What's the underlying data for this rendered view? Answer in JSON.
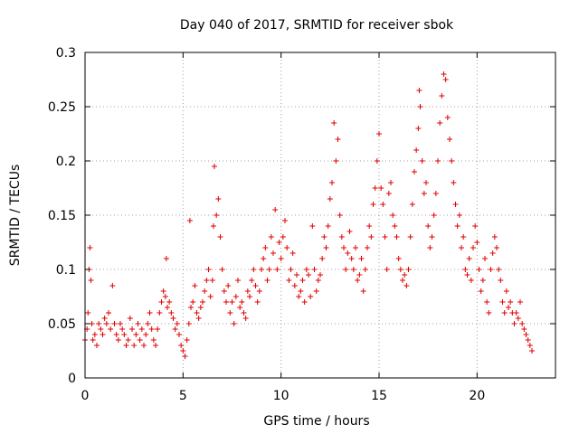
{
  "chart_data": {
    "type": "scatter",
    "title": "Day 040 of 2017, SRMTID for receiver sbok",
    "xlabel": "GPS time / hours",
    "ylabel": "SRMTID / TECUs",
    "xlim": [
      0,
      24
    ],
    "ylim": [
      0,
      0.3
    ],
    "xticks": [
      0,
      5,
      10,
      15,
      20
    ],
    "xtick_labels": [
      "0",
      "5",
      "10",
      "15",
      "20"
    ],
    "yticks": [
      0,
      0.05,
      0.1,
      0.15,
      0.2,
      0.25,
      0.3
    ],
    "ytick_labels": [
      "0",
      "0.05",
      "0.1",
      "0.15",
      "0.2",
      "0.25",
      "0.3"
    ],
    "grid": true,
    "marker": "plus",
    "color": "#e00000",
    "series": [
      {
        "name": "SRMTID",
        "points": [
          [
            0.0,
            0.035
          ],
          [
            0.1,
            0.045
          ],
          [
            0.15,
            0.06
          ],
          [
            0.2,
            0.1
          ],
          [
            0.25,
            0.12
          ],
          [
            0.3,
            0.09
          ],
          [
            0.35,
            0.05
          ],
          [
            0.4,
            0.035
          ],
          [
            0.5,
            0.04
          ],
          [
            0.6,
            0.03
          ],
          [
            0.7,
            0.05
          ],
          [
            0.8,
            0.045
          ],
          [
            0.9,
            0.04
          ],
          [
            1.0,
            0.055
          ],
          [
            1.1,
            0.05
          ],
          [
            1.2,
            0.06
          ],
          [
            1.3,
            0.045
          ],
          [
            1.4,
            0.085
          ],
          [
            1.5,
            0.05
          ],
          [
            1.6,
            0.04
          ],
          [
            1.7,
            0.035
          ],
          [
            1.8,
            0.05
          ],
          [
            1.9,
            0.045
          ],
          [
            2.0,
            0.04
          ],
          [
            2.1,
            0.03
          ],
          [
            2.2,
            0.035
          ],
          [
            2.3,
            0.055
          ],
          [
            2.4,
            0.045
          ],
          [
            2.5,
            0.03
          ],
          [
            2.6,
            0.04
          ],
          [
            2.7,
            0.05
          ],
          [
            2.8,
            0.035
          ],
          [
            2.9,
            0.045
          ],
          [
            3.0,
            0.03
          ],
          [
            3.1,
            0.04
          ],
          [
            3.2,
            0.05
          ],
          [
            3.3,
            0.06
          ],
          [
            3.4,
            0.045
          ],
          [
            3.5,
            0.035
          ],
          [
            3.6,
            0.03
          ],
          [
            3.7,
            0.045
          ],
          [
            3.8,
            0.06
          ],
          [
            3.9,
            0.07
          ],
          [
            4.0,
            0.08
          ],
          [
            4.1,
            0.075
          ],
          [
            4.15,
            0.11
          ],
          [
            4.2,
            0.065
          ],
          [
            4.3,
            0.07
          ],
          [
            4.4,
            0.06
          ],
          [
            4.5,
            0.055
          ],
          [
            4.6,
            0.045
          ],
          [
            4.7,
            0.05
          ],
          [
            4.8,
            0.04
          ],
          [
            4.9,
            0.03
          ],
          [
            5.0,
            0.025
          ],
          [
            5.1,
            0.02
          ],
          [
            5.2,
            0.035
          ],
          [
            5.3,
            0.05
          ],
          [
            5.35,
            0.145
          ],
          [
            5.4,
            0.065
          ],
          [
            5.5,
            0.07
          ],
          [
            5.6,
            0.085
          ],
          [
            5.7,
            0.06
          ],
          [
            5.8,
            0.055
          ],
          [
            5.9,
            0.065
          ],
          [
            6.0,
            0.07
          ],
          [
            6.1,
            0.08
          ],
          [
            6.2,
            0.09
          ],
          [
            6.3,
            0.1
          ],
          [
            6.4,
            0.075
          ],
          [
            6.5,
            0.09
          ],
          [
            6.55,
            0.14
          ],
          [
            6.6,
            0.195
          ],
          [
            6.7,
            0.15
          ],
          [
            6.8,
            0.165
          ],
          [
            6.9,
            0.13
          ],
          [
            7.0,
            0.1
          ],
          [
            7.1,
            0.08
          ],
          [
            7.2,
            0.07
          ],
          [
            7.3,
            0.085
          ],
          [
            7.4,
            0.06
          ],
          [
            7.5,
            0.07
          ],
          [
            7.6,
            0.05
          ],
          [
            7.7,
            0.075
          ],
          [
            7.8,
            0.09
          ],
          [
            7.9,
            0.065
          ],
          [
            8.0,
            0.07
          ],
          [
            8.1,
            0.06
          ],
          [
            8.2,
            0.055
          ],
          [
            8.3,
            0.08
          ],
          [
            8.4,
            0.075
          ],
          [
            8.5,
            0.09
          ],
          [
            8.6,
            0.1
          ],
          [
            8.7,
            0.085
          ],
          [
            8.8,
            0.07
          ],
          [
            8.9,
            0.08
          ],
          [
            9.0,
            0.1
          ],
          [
            9.1,
            0.11
          ],
          [
            9.2,
            0.12
          ],
          [
            9.3,
            0.09
          ],
          [
            9.4,
            0.1
          ],
          [
            9.5,
            0.13
          ],
          [
            9.6,
            0.115
          ],
          [
            9.7,
            0.155
          ],
          [
            9.8,
            0.1
          ],
          [
            9.9,
            0.125
          ],
          [
            10.0,
            0.11
          ],
          [
            10.1,
            0.13
          ],
          [
            10.2,
            0.145
          ],
          [
            10.3,
            0.12
          ],
          [
            10.4,
            0.09
          ],
          [
            10.5,
            0.1
          ],
          [
            10.6,
            0.115
          ],
          [
            10.7,
            0.085
          ],
          [
            10.8,
            0.095
          ],
          [
            10.9,
            0.075
          ],
          [
            11.0,
            0.08
          ],
          [
            11.1,
            0.09
          ],
          [
            11.2,
            0.07
          ],
          [
            11.3,
            0.1
          ],
          [
            11.4,
            0.095
          ],
          [
            11.5,
            0.075
          ],
          [
            11.6,
            0.14
          ],
          [
            11.7,
            0.1
          ],
          [
            11.8,
            0.08
          ],
          [
            11.9,
            0.09
          ],
          [
            12.0,
            0.095
          ],
          [
            12.1,
            0.11
          ],
          [
            12.2,
            0.13
          ],
          [
            12.3,
            0.12
          ],
          [
            12.4,
            0.14
          ],
          [
            12.5,
            0.165
          ],
          [
            12.6,
            0.18
          ],
          [
            12.7,
            0.235
          ],
          [
            12.8,
            0.2
          ],
          [
            12.9,
            0.22
          ],
          [
            13.0,
            0.15
          ],
          [
            13.1,
            0.13
          ],
          [
            13.2,
            0.12
          ],
          [
            13.3,
            0.1
          ],
          [
            13.4,
            0.115
          ],
          [
            13.5,
            0.135
          ],
          [
            13.6,
            0.11
          ],
          [
            13.7,
            0.1
          ],
          [
            13.8,
            0.12
          ],
          [
            13.9,
            0.09
          ],
          [
            14.0,
            0.095
          ],
          [
            14.1,
            0.11
          ],
          [
            14.2,
            0.08
          ],
          [
            14.3,
            0.1
          ],
          [
            14.4,
            0.12
          ],
          [
            14.5,
            0.14
          ],
          [
            14.6,
            0.13
          ],
          [
            14.7,
            0.16
          ],
          [
            14.8,
            0.175
          ],
          [
            14.9,
            0.2
          ],
          [
            15.0,
            0.225
          ],
          [
            15.1,
            0.175
          ],
          [
            15.2,
            0.16
          ],
          [
            15.3,
            0.13
          ],
          [
            15.4,
            0.1
          ],
          [
            15.5,
            0.17
          ],
          [
            15.6,
            0.18
          ],
          [
            15.7,
            0.15
          ],
          [
            15.8,
            0.14
          ],
          [
            15.9,
            0.13
          ],
          [
            16.0,
            0.11
          ],
          [
            16.1,
            0.1
          ],
          [
            16.2,
            0.09
          ],
          [
            16.3,
            0.095
          ],
          [
            16.4,
            0.085
          ],
          [
            16.5,
            0.1
          ],
          [
            16.6,
            0.13
          ],
          [
            16.7,
            0.16
          ],
          [
            16.8,
            0.19
          ],
          [
            16.9,
            0.21
          ],
          [
            17.0,
            0.23
          ],
          [
            17.05,
            0.265
          ],
          [
            17.1,
            0.25
          ],
          [
            17.2,
            0.2
          ],
          [
            17.3,
            0.17
          ],
          [
            17.4,
            0.18
          ],
          [
            17.5,
            0.14
          ],
          [
            17.6,
            0.12
          ],
          [
            17.7,
            0.13
          ],
          [
            17.8,
            0.15
          ],
          [
            17.9,
            0.17
          ],
          [
            18.0,
            0.2
          ],
          [
            18.1,
            0.235
          ],
          [
            18.2,
            0.26
          ],
          [
            18.3,
            0.28
          ],
          [
            18.4,
            0.275
          ],
          [
            18.5,
            0.24
          ],
          [
            18.6,
            0.22
          ],
          [
            18.7,
            0.2
          ],
          [
            18.8,
            0.18
          ],
          [
            18.9,
            0.16
          ],
          [
            19.0,
            0.14
          ],
          [
            19.1,
            0.15
          ],
          [
            19.2,
            0.12
          ],
          [
            19.3,
            0.13
          ],
          [
            19.4,
            0.1
          ],
          [
            19.5,
            0.095
          ],
          [
            19.6,
            0.11
          ],
          [
            19.7,
            0.09
          ],
          [
            19.8,
            0.12
          ],
          [
            19.9,
            0.14
          ],
          [
            20.0,
            0.125
          ],
          [
            20.1,
            0.1
          ],
          [
            20.2,
            0.08
          ],
          [
            20.3,
            0.09
          ],
          [
            20.4,
            0.11
          ],
          [
            20.5,
            0.07
          ],
          [
            20.6,
            0.06
          ],
          [
            20.7,
            0.1
          ],
          [
            20.8,
            0.115
          ],
          [
            20.9,
            0.13
          ],
          [
            21.0,
            0.12
          ],
          [
            21.1,
            0.1
          ],
          [
            21.2,
            0.09
          ],
          [
            21.3,
            0.07
          ],
          [
            21.4,
            0.06
          ],
          [
            21.5,
            0.08
          ],
          [
            21.6,
            0.065
          ],
          [
            21.7,
            0.07
          ],
          [
            21.8,
            0.06
          ],
          [
            21.9,
            0.05
          ],
          [
            22.0,
            0.06
          ],
          [
            22.1,
            0.055
          ],
          [
            22.2,
            0.07
          ],
          [
            22.3,
            0.05
          ],
          [
            22.4,
            0.045
          ],
          [
            22.5,
            0.04
          ],
          [
            22.6,
            0.035
          ],
          [
            22.7,
            0.03
          ],
          [
            22.8,
            0.025
          ]
        ]
      }
    ]
  }
}
